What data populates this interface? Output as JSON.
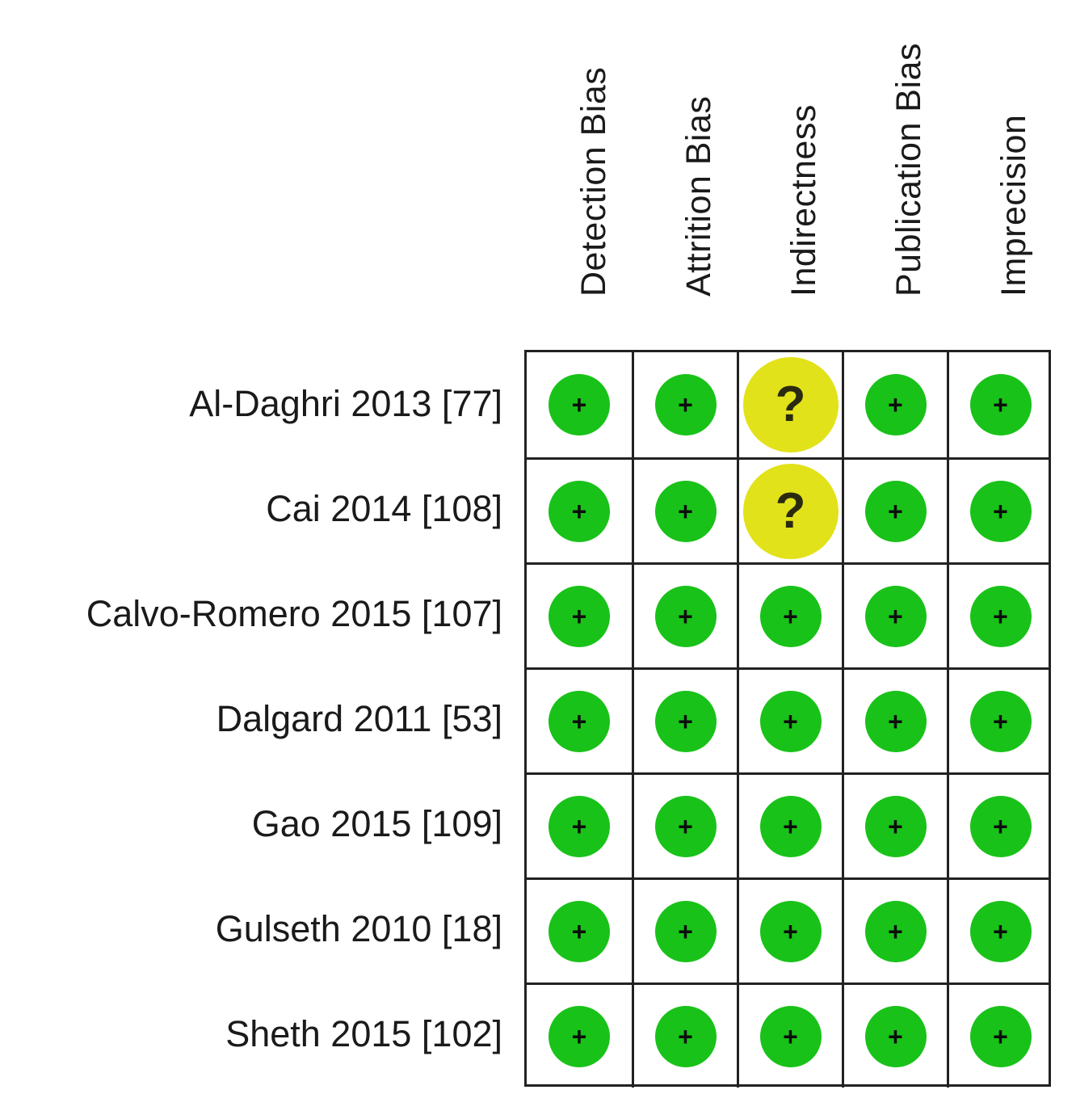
{
  "columns": [
    "Detection Bias",
    "Attrition Bias",
    "Indirectness",
    "Publication Bias",
    "Imprecision"
  ],
  "studies": [
    {
      "label": "Al-Daghri 2013 [77]",
      "judgements": [
        "low",
        "low",
        "unclear",
        "low",
        "low"
      ]
    },
    {
      "label": "Cai 2014 [108]",
      "judgements": [
        "low",
        "low",
        "unclear",
        "low",
        "low"
      ]
    },
    {
      "label": "Calvo-Romero 2015 [107]",
      "judgements": [
        "low",
        "low",
        "low",
        "low",
        "low"
      ]
    },
    {
      "label": "Dalgard 2011 [53]",
      "judgements": [
        "low",
        "low",
        "low",
        "low",
        "low"
      ]
    },
    {
      "label": "Gao 2015 [109]",
      "judgements": [
        "low",
        "low",
        "low",
        "low",
        "low"
      ]
    },
    {
      "label": "Gulseth 2010 [18]",
      "judgements": [
        "low",
        "low",
        "low",
        "low",
        "low"
      ]
    },
    {
      "label": "Sheth 2015 [102]",
      "judgements": [
        "low",
        "low",
        "low",
        "low",
        "low"
      ]
    }
  ],
  "symbols": {
    "low": {
      "glyph": "+",
      "color": "#19c219",
      "icon": "plus-circle-icon"
    },
    "unclear": {
      "glyph": "?",
      "color": "#e2e21a",
      "icon": "question-circle-icon"
    }
  }
}
